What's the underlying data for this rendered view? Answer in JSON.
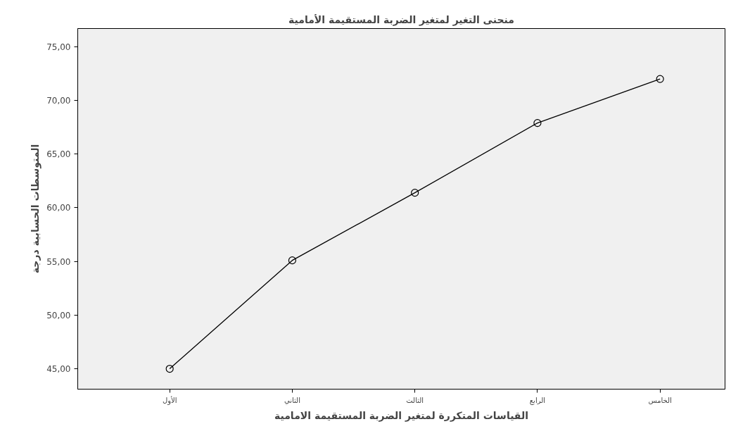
{
  "chart_data": {
    "type": "line",
    "title": "منحنى التغير لمتغير الضربة المستقيمة الأمامية",
    "xlabel": "القياسات المتكررة لمتغير الضربة المستقيمة الامامية",
    "ylabel": "المتوسطات الحسابية درجة",
    "categories": [
      "الأول",
      "الثاني",
      "الثالث",
      "الرابع",
      "الخامس"
    ],
    "series": [
      {
        "color": "#000000",
        "values": [
          45.0,
          55.1,
          61.4,
          67.9,
          72.0
        ]
      }
    ],
    "ylim": [
      43.1,
      76.7
    ],
    "yticks": [
      {
        "value": 45,
        "label": "45,00"
      },
      {
        "value": 50,
        "label": "50,00"
      },
      {
        "value": 55,
        "label": "55,00"
      },
      {
        "value": 60,
        "label": "60,00"
      },
      {
        "value": 65,
        "label": "65,00"
      },
      {
        "value": 70,
        "label": "70,00"
      },
      {
        "value": 75,
        "label": "75,00"
      }
    ],
    "grid": false,
    "marker": "circle",
    "line_style": "solid"
  }
}
